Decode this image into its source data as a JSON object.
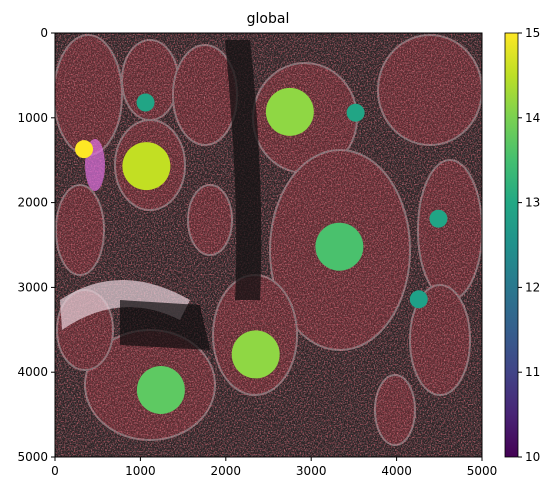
{
  "chart_data": {
    "type": "scatter",
    "title": "global",
    "background": "tissue microscopy image (dark field, red/white stained nuclei)",
    "xlabel": "",
    "ylabel": "",
    "xlim": [
      0,
      5000
    ],
    "ylim": [
      5000,
      0
    ],
    "x_ticks": [
      "0",
      "1000",
      "2000",
      "3000",
      "4000",
      "5000"
    ],
    "y_ticks": [
      "0",
      "1000",
      "2000",
      "3000",
      "4000",
      "5000"
    ],
    "grid": false,
    "colorbar": {
      "colormap": "viridis",
      "range": [
        10,
        15
      ],
      "ticks": [
        "10",
        "11",
        "12",
        "13",
        "14",
        "15"
      ]
    },
    "points": [
      {
        "x": 340,
        "y": 1370,
        "size": "small",
        "value": 15.0,
        "color": "#fde725"
      },
      {
        "x": 1060,
        "y": 820,
        "size": "small",
        "value": 13.0,
        "color": "#21a585"
      },
      {
        "x": 1070,
        "y": 1570,
        "size": "large",
        "value": 14.7,
        "color": "#c2df23"
      },
      {
        "x": 2750,
        "y": 930,
        "size": "large",
        "value": 14.4,
        "color": "#8fd744"
      },
      {
        "x": 3520,
        "y": 940,
        "size": "small",
        "value": 13.0,
        "color": "#21a585"
      },
      {
        "x": 4490,
        "y": 2190,
        "size": "small",
        "value": 13.0,
        "color": "#21a585"
      },
      {
        "x": 3330,
        "y": 2520,
        "size": "large",
        "value": 13.8,
        "color": "#4ac16d"
      },
      {
        "x": 4260,
        "y": 3140,
        "size": "small",
        "value": 12.9,
        "color": "#1fa188"
      },
      {
        "x": 2350,
        "y": 3790,
        "size": "large",
        "value": 14.4,
        "color": "#8fd744"
      },
      {
        "x": 1240,
        "y": 4210,
        "size": "large",
        "value": 14.0,
        "color": "#5ec962"
      }
    ]
  }
}
